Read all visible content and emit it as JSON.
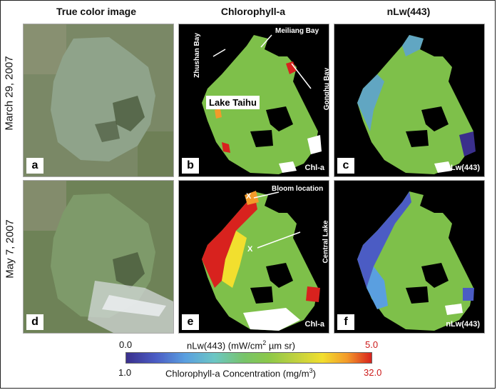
{
  "columns": [
    "True color image",
    "Chlorophyll-a",
    "nLw(443)"
  ],
  "rows": [
    "March 29, 2007",
    "May 7, 2007"
  ],
  "panel_labels": [
    "a",
    "b",
    "c",
    "d",
    "e",
    "f"
  ],
  "panel_notes": {
    "b": "Chl-a",
    "c": "nLw(443)",
    "e": "Chl-a",
    "f": "nLw(443)"
  },
  "annotations": {
    "meiliang": "Meiliang Bay",
    "zhushan": "Zhushan Bay",
    "gonghu": "Gonghu Bay",
    "lake": "Lake Taihu",
    "bloom": "Bloom location",
    "central": "Central Lake",
    "x_mark": "X"
  },
  "colorbar": {
    "nlw_min": "0.0",
    "nlw_max": "5.0",
    "nlw_label_pre": "nLw(443) (mW/cm",
    "nlw_label_sup": "2",
    "nlw_label_post": " µm sr)",
    "chl_min": "1.0",
    "chl_max": "32.0",
    "chl_label_pre": "Chlorophyll-a Concentration (mg/m",
    "chl_label_sup": "3",
    "chl_label_post": ")",
    "colors": [
      "#3a2f8c",
      "#5a9fe0",
      "#78c46a",
      "#f2df2e",
      "#d8221e"
    ]
  }
}
